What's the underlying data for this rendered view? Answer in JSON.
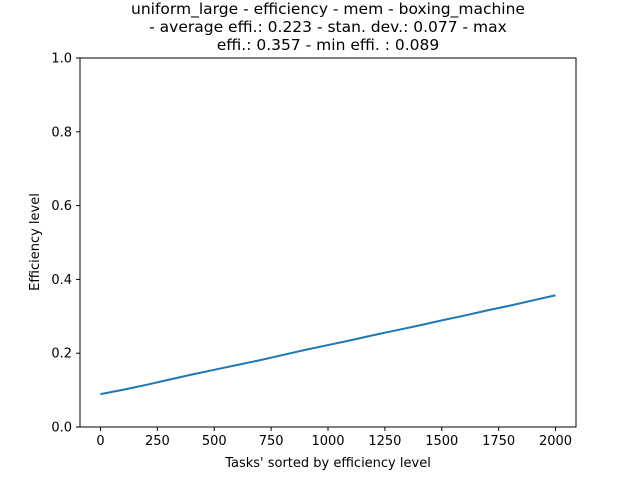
{
  "chart_data": {
    "type": "line",
    "title_lines": [
      "uniform_large - efficiency - mem - boxing_machine",
      "- average effi.: 0.223 - stan. dev.: 0.077 - max",
      "effi.: 0.357 - min effi. : 0.089"
    ],
    "xlabel": "Tasks' sorted by efficiency level",
    "ylabel": "Efficiency level",
    "xlim": [
      -90,
      2090
    ],
    "ylim": [
      0,
      1
    ],
    "xticks": [
      0,
      250,
      500,
      750,
      1000,
      1250,
      1500,
      1750,
      2000
    ],
    "xtick_labels": [
      "0",
      "250",
      "500",
      "750",
      "1000",
      "1250",
      "1500",
      "1750",
      "2000"
    ],
    "yticks": [
      0,
      0.2,
      0.4,
      0.6,
      0.8,
      1
    ],
    "ytick_labels": [
      "0.0",
      "0.2",
      "0.4",
      "0.6",
      "0.8",
      "1.0"
    ],
    "grid": false,
    "legend": "none",
    "series": [
      {
        "color": "#1f77b4",
        "x": [
          0,
          100,
          200,
          300,
          400,
          500,
          600,
          700,
          800,
          900,
          1000,
          1100,
          1200,
          1300,
          1400,
          1500,
          1600,
          1700,
          1800,
          1900,
          2000
        ],
        "y": [
          0.089,
          0.101,
          0.114,
          0.128,
          0.142,
          0.155,
          0.168,
          0.181,
          0.195,
          0.209,
          0.222,
          0.235,
          0.249,
          0.262,
          0.275,
          0.289,
          0.302,
          0.316,
          0.329,
          0.343,
          0.357
        ]
      }
    ]
  }
}
